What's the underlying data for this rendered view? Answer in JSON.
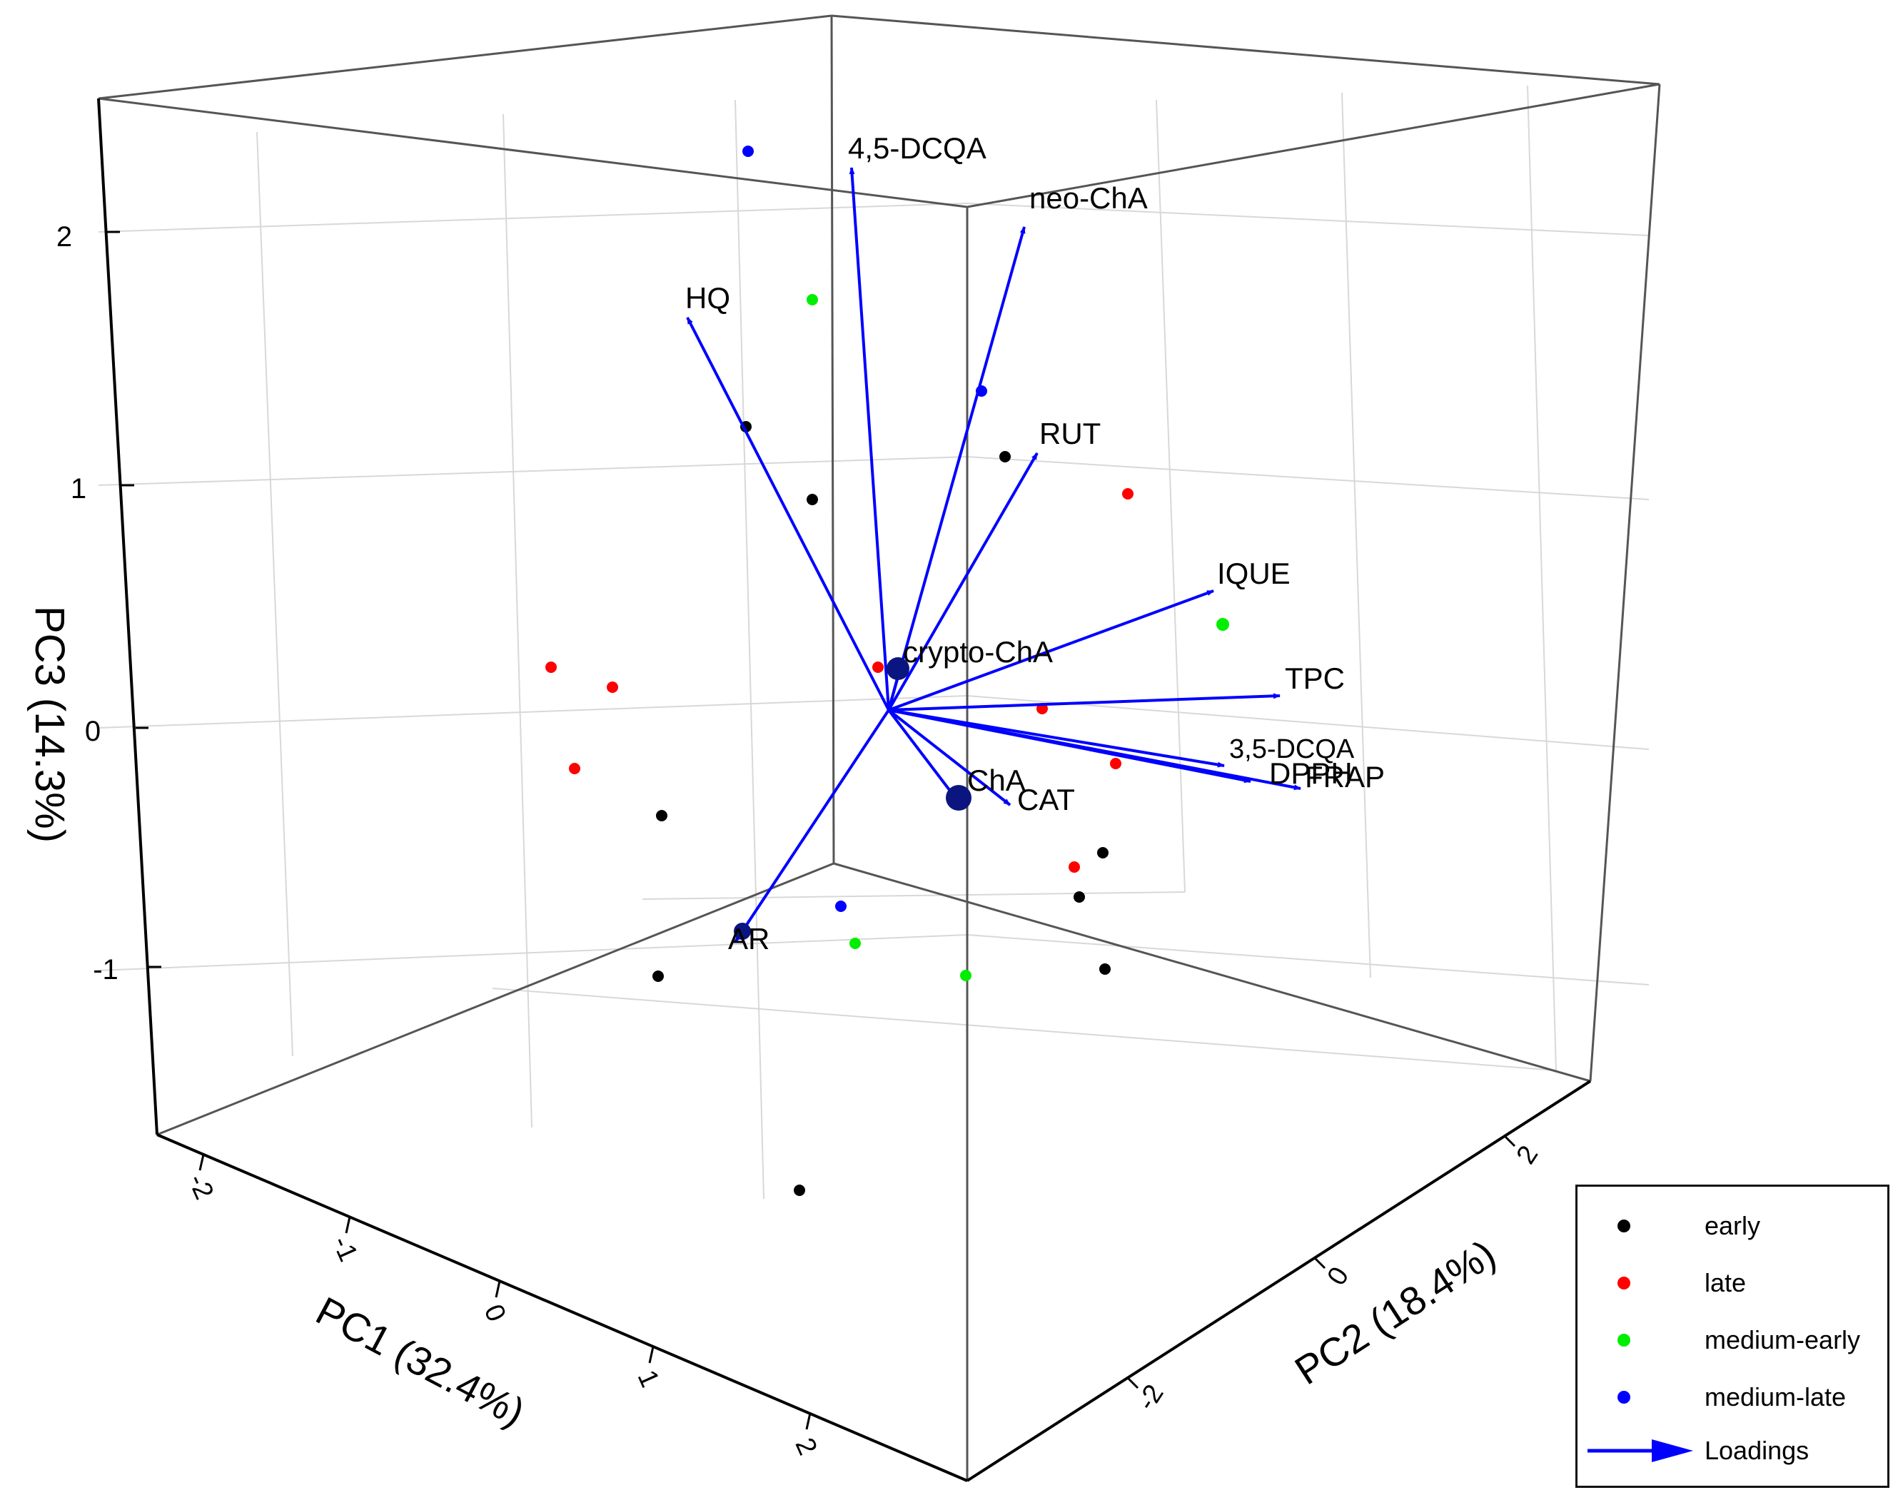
{
  "chart_data": {
    "type": "scatter",
    "subtype": "3d-biplot",
    "axes": {
      "x": {
        "label": "PC1 (32.4%)",
        "ticks": [
          "-2",
          "-1",
          "0",
          "1",
          "2"
        ]
      },
      "y": {
        "label": "PC2 (18.4%)",
        "ticks": [
          "2",
          "0",
          "-2"
        ]
      },
      "z": {
        "label": "PC3 (14.3%)",
        "ticks": [
          "2",
          "1",
          "0",
          "-1"
        ]
      }
    },
    "grid": true,
    "legend_position": "bottom-right",
    "series": [
      {
        "name": "early",
        "color": "#000000"
      },
      {
        "name": "late",
        "color": "#ff0000"
      },
      {
        "name": "medium-early",
        "color": "#00ee00"
      },
      {
        "name": "medium-late",
        "color": "#0000ff"
      },
      {
        "name": "Loadings",
        "color": "#0000ff"
      }
    ],
    "loadings": [
      {
        "label": "4,5-DCQA"
      },
      {
        "label": "neo-ChA"
      },
      {
        "label": "HQ"
      },
      {
        "label": "RUT"
      },
      {
        "label": "IQUE"
      },
      {
        "label": "crypto-ChA"
      },
      {
        "label": "TPC"
      },
      {
        "label": "3,5-DCQA"
      },
      {
        "label": "DPPH"
      },
      {
        "label": "FRAP"
      },
      {
        "label": "ChA"
      },
      {
        "label": "CAT"
      },
      {
        "label": "AR"
      }
    ]
  }
}
